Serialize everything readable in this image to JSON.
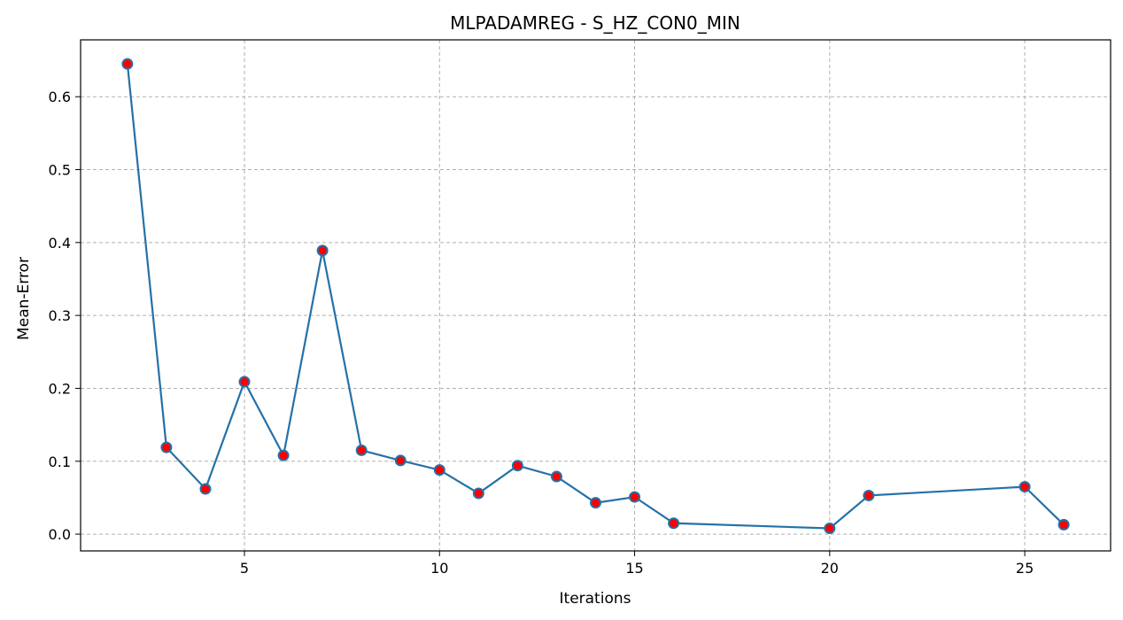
{
  "chart_data": {
    "type": "line",
    "title": "MLPADAMREG - S_HZ_CON0_MIN",
    "xlabel": "Iterations",
    "ylabel": "Mean-Error",
    "xlim": [
      0.8,
      27.2
    ],
    "ylim": [
      -0.023,
      0.678
    ],
    "xticks": [
      5,
      10,
      15,
      20,
      25
    ],
    "yticks": [
      0.0,
      0.1,
      0.2,
      0.3,
      0.4,
      0.5,
      0.6
    ],
    "xtick_labels": [
      "5",
      "10",
      "15",
      "20",
      "25"
    ],
    "ytick_labels": [
      "0.0",
      "0.1",
      "0.2",
      "0.3",
      "0.4",
      "0.5",
      "0.6"
    ],
    "grid": true,
    "line_color": "#2471a8",
    "marker_color": "#ff0000",
    "marker_edge_color": "#2471a8",
    "series": [
      {
        "x": [
          2,
          3,
          4,
          5,
          6,
          7,
          8,
          9,
          10,
          11,
          12,
          13,
          14,
          15,
          16,
          20,
          21,
          25,
          26
        ],
        "values": [
          0.645,
          0.119,
          0.062,
          0.209,
          0.108,
          0.389,
          0.115,
          0.101,
          0.088,
          0.056,
          0.094,
          0.079,
          0.043,
          0.051,
          0.015,
          0.008,
          0.053,
          0.065,
          0.013
        ]
      }
    ]
  }
}
